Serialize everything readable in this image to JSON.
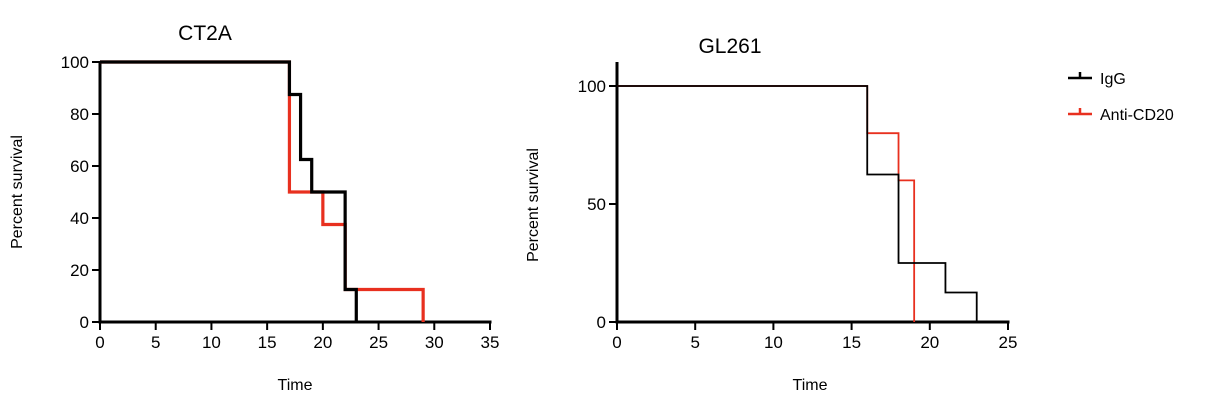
{
  "chart_data": [
    {
      "type": "line",
      "subtype": "kaplan-meier-step",
      "title": "CT2A",
      "xlabel": "Time",
      "ylabel": "Percent survival",
      "xlim": [
        0,
        35
      ],
      "ylim": [
        0,
        100
      ],
      "xticks": [
        0,
        5,
        10,
        15,
        20,
        25,
        30,
        35
      ],
      "yticks": [
        0,
        20,
        40,
        60,
        80,
        100
      ],
      "grid": false,
      "series": [
        {
          "name": "IgG",
          "color": "#000000",
          "x": [
            0,
            17,
            18,
            19,
            22,
            23
          ],
          "y": [
            100,
            87.5,
            62.5,
            50,
            12.5,
            0
          ]
        },
        {
          "name": "Anti-CD20",
          "color": "#e8301f",
          "x": [
            0,
            17,
            20,
            22,
            29
          ],
          "y": [
            100,
            50,
            37.5,
            12.5,
            0
          ]
        }
      ]
    },
    {
      "type": "line",
      "subtype": "kaplan-meier-step",
      "title": "GL261",
      "xlabel": "Time",
      "ylabel": "Percent survival",
      "xlim": [
        0,
        25
      ],
      "ylim": [
        0,
        100
      ],
      "xticks": [
        0,
        5,
        10,
        15,
        20,
        25
      ],
      "yticks": [
        0,
        50,
        100
      ],
      "grid": false,
      "series": [
        {
          "name": "IgG",
          "color": "#000000",
          "x": [
            0,
            16,
            18,
            21,
            23
          ],
          "y": [
            100,
            62.5,
            25,
            12.5,
            0
          ]
        },
        {
          "name": "Anti-CD20",
          "color": "#e8301f",
          "x": [
            0,
            16,
            18,
            19
          ],
          "y": [
            100,
            80,
            60,
            0
          ]
        }
      ]
    }
  ],
  "legend": {
    "placement": "right",
    "items": [
      {
        "label": "IgG",
        "color": "#000000"
      },
      {
        "label": "Anti-CD20",
        "color": "#e8301f"
      }
    ]
  }
}
